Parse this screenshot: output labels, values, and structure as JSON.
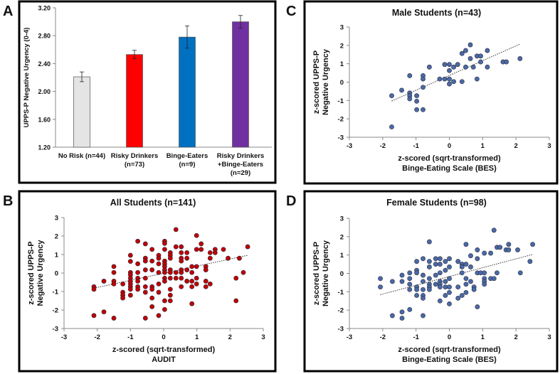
{
  "colors": {
    "risk_none": "#e4e4e4",
    "risk_drink": "#ff0000",
    "risk_binge": "#0070c0",
    "risk_both": "#7030a0",
    "dot_red": "#c00000",
    "dot_blue": "#4a6aa5"
  },
  "chart_data": [
    {
      "panel": "A",
      "type": "bar",
      "title": "",
      "ylabel": "UPPS-P Negative Urgency (0-4)",
      "xlabel": "",
      "ylim": [
        1.2,
        3.2
      ],
      "yticks": [
        "1.20",
        "1.60",
        "2.00",
        "2.40",
        "2.80",
        "3.20"
      ],
      "categories": [
        [
          "No Risk (n=44)"
        ],
        [
          "Risky Drinkers",
          "(n=73)"
        ],
        [
          "Binge-Eaters",
          "(n=9)"
        ],
        [
          "Risky Drinkers",
          "+Binge-Eaters",
          "(n=29)"
        ]
      ],
      "values": [
        2.21,
        2.53,
        2.78,
        3.0
      ],
      "errors": [
        0.07,
        0.06,
        0.16,
        0.09
      ],
      "bar_colors": [
        "#e4e4e4",
        "#ff0000",
        "#0070c0",
        "#7030a0"
      ]
    },
    {
      "panel": "B",
      "type": "scatter",
      "title": "All Students (n=141)",
      "ylabel": [
        "z-scored UPPS-P",
        "Negative Urgency"
      ],
      "xlabel": [
        "z-scored (sqrt-transformed)",
        "AUDIT"
      ],
      "xlim": [
        -3,
        3
      ],
      "ylim": [
        -3,
        3
      ],
      "ticks": [
        "-3",
        "-2",
        "-1",
        "0",
        "1",
        "2",
        "3"
      ],
      "color": "#c00000",
      "trend": [
        [
          -2.1,
          -0.82
        ],
        [
          2.53,
          0.96
        ]
      ],
      "points": [
        [
          -2.1,
          -0.74
        ],
        [
          -2.1,
          -0.88
        ],
        [
          -2.1,
          -2.3
        ],
        [
          -1.8,
          -0.44
        ],
        [
          -1.8,
          -2.1
        ],
        [
          -1.5,
          0.35
        ],
        [
          -1.5,
          0.03
        ],
        [
          -1.5,
          -0.44
        ],
        [
          -1.5,
          -0.59
        ],
        [
          -1.5,
          -2.44
        ],
        [
          -1.23,
          -0.59
        ],
        [
          -1.23,
          -1.04
        ],
        [
          -1.23,
          -1.2
        ],
        [
          -1.23,
          -1.35
        ],
        [
          -1,
          0.96
        ],
        [
          -1,
          0.63
        ],
        [
          -1,
          0.03
        ],
        [
          -1,
          -0.1
        ],
        [
          -1,
          -0.28
        ],
        [
          -1,
          -0.44
        ],
        [
          -1,
          -0.59
        ],
        [
          -1,
          -0.74
        ],
        [
          -1,
          -0.88
        ],
        [
          -1,
          -1.2
        ],
        [
          -0.78,
          1.72
        ],
        [
          -0.78,
          0.5
        ],
        [
          -0.78,
          0.03
        ],
        [
          -0.78,
          -0.28
        ],
        [
          -0.78,
          -0.44
        ],
        [
          -0.78,
          -0.74
        ],
        [
          -0.78,
          -0.88
        ],
        [
          -0.55,
          1.58
        ],
        [
          -0.55,
          0.8
        ],
        [
          -0.55,
          0.65
        ],
        [
          -0.55,
          0.17
        ],
        [
          -0.55,
          -0.28
        ],
        [
          -0.55,
          -0.74
        ],
        [
          -0.55,
          -1.04
        ],
        [
          -0.55,
          -2.44
        ],
        [
          -0.35,
          1.28
        ],
        [
          -0.35,
          0.65
        ],
        [
          -0.35,
          0.17
        ],
        [
          -0.35,
          -0.74
        ],
        [
          -0.35,
          -0.88
        ],
        [
          -0.35,
          -1.35
        ],
        [
          -0.35,
          -1.82
        ],
        [
          -0.15,
          0.96
        ],
        [
          -0.15,
          0.8
        ],
        [
          -0.15,
          0.5
        ],
        [
          -0.15,
          0.03
        ],
        [
          -0.15,
          -0.59
        ],
        [
          -0.15,
          -1.04
        ],
        [
          -0.15,
          -2.3
        ],
        [
          0.03,
          1.72
        ],
        [
          0.03,
          1.6
        ],
        [
          0.03,
          1.28
        ],
        [
          0.03,
          0.65
        ],
        [
          0.03,
          0.5
        ],
        [
          0.03,
          0.35
        ],
        [
          0.03,
          0.17
        ],
        [
          0.03,
          0.03
        ],
        [
          0.03,
          -0.28
        ],
        [
          0.03,
          -0.44
        ],
        [
          0.03,
          -1.5
        ],
        [
          0.03,
          -1.97
        ],
        [
          0.2,
          1.1
        ],
        [
          0.2,
          0.96
        ],
        [
          0.2,
          0.8
        ],
        [
          0.2,
          0.17
        ],
        [
          0.2,
          0.03
        ],
        [
          0.2,
          -0.28
        ],
        [
          0.2,
          -0.88
        ],
        [
          0.2,
          -1.2
        ],
        [
          0.2,
          -1.5
        ],
        [
          0.37,
          2.35
        ],
        [
          0.37,
          1.42
        ],
        [
          0.37,
          0.03
        ],
        [
          0.37,
          -0.28
        ],
        [
          0.53,
          1.42
        ],
        [
          0.53,
          1.1
        ],
        [
          0.53,
          0.8
        ],
        [
          0.53,
          0.65
        ],
        [
          0.53,
          0.17
        ],
        [
          0.53,
          0.03
        ],
        [
          0.53,
          -0.28
        ],
        [
          0.53,
          -0.74
        ],
        [
          0.7,
          1.1
        ],
        [
          0.7,
          0.8
        ],
        [
          0.7,
          0.17
        ],
        [
          0.7,
          -0.44
        ],
        [
          0.85,
          0.35
        ],
        [
          0.85,
          0.03
        ],
        [
          0.85,
          -0.44
        ],
        [
          0.85,
          -0.74
        ],
        [
          0.85,
          -1.66
        ],
        [
          0.99,
          2.03
        ],
        [
          0.99,
          1.28
        ],
        [
          0.99,
          0.35
        ],
        [
          0.99,
          -0.28
        ],
        [
          0.99,
          -0.59
        ],
        [
          1.13,
          1.58
        ],
        [
          1.13,
          1.28
        ],
        [
          1.27,
          0.35
        ],
        [
          1.27,
          0.17
        ],
        [
          1.27,
          -0.44
        ],
        [
          1.27,
          -0.74
        ],
        [
          1.4,
          1.1
        ],
        [
          1.4,
          0.8
        ],
        [
          1.4,
          -0.59
        ],
        [
          1.55,
          1.28
        ],
        [
          1.55,
          1.1
        ],
        [
          1.8,
          1.28
        ],
        [
          1.94,
          0.8
        ],
        [
          2.18,
          -0.28
        ],
        [
          2.18,
          -1.5
        ],
        [
          2.28,
          0.8
        ],
        [
          2.4,
          0.03
        ],
        [
          2.53,
          1.42
        ]
      ]
    },
    {
      "panel": "C",
      "type": "scatter",
      "title": "Male Students (n=43)",
      "ylabel": [
        "z-scored UPPS-P",
        "Negative Urgency"
      ],
      "xlabel": [
        "z-scored (sqrt-transformed)",
        "Binge-Eating Scale (BES)"
      ],
      "xlim": [
        -3,
        3
      ],
      "ylim": [
        -3,
        3
      ],
      "ticks": [
        "-3",
        "-2",
        "-1",
        "0",
        "1",
        "2",
        "3"
      ],
      "color": "#4a6aa5",
      "trend": [
        [
          -1.73,
          -1.03
        ],
        [
          2.12,
          2.07
        ]
      ],
      "points": [
        [
          -1.73,
          -0.74
        ],
        [
          -1.73,
          -2.44
        ],
        [
          -1.43,
          -0.44
        ],
        [
          -1.19,
          0.35
        ],
        [
          -1.19,
          -0.59
        ],
        [
          -1.19,
          -0.74
        ],
        [
          -1.19,
          -0.91
        ],
        [
          -0.98,
          -0.74
        ],
        [
          -0.98,
          -1.04
        ],
        [
          -0.98,
          -1.5
        ],
        [
          -0.79,
          0.35
        ],
        [
          -0.79,
          0.17
        ],
        [
          -0.79,
          -0.28
        ],
        [
          -0.79,
          -1.5
        ],
        [
          -0.6,
          0.82
        ],
        [
          -0.29,
          0.17
        ],
        [
          -0.14,
          0.96
        ],
        [
          -0.14,
          0.17
        ],
        [
          0,
          0.96
        ],
        [
          0,
          0.63
        ],
        [
          0,
          0.17
        ],
        [
          0,
          -0.1
        ],
        [
          0.13,
          0.82
        ],
        [
          0.13,
          0.03
        ],
        [
          0.25,
          0.96
        ],
        [
          0.38,
          1.56
        ],
        [
          0.38,
          0.03
        ],
        [
          0.49,
          1.72
        ],
        [
          0.49,
          0.82
        ],
        [
          0.63,
          2.03
        ],
        [
          0.63,
          1.28
        ],
        [
          0.72,
          0.82
        ],
        [
          0.83,
          1.42
        ],
        [
          0.83,
          0.17
        ],
        [
          0.94,
          1.42
        ],
        [
          0.94,
          1.1
        ],
        [
          1.14,
          1.72
        ],
        [
          1.14,
          0.82
        ],
        [
          1.61,
          1.1
        ],
        [
          1.71,
          1.1
        ],
        [
          2.12,
          1.28
        ]
      ]
    },
    {
      "panel": "D",
      "type": "scatter",
      "title": "Female Students (n=98)",
      "ylabel": [
        "z-scored UPPS-P",
        "Negative Urgency"
      ],
      "xlabel": [
        "z-scored (sqrt-transformed)",
        "Binge-Eating Scale (BES)"
      ],
      "xlim": [
        -3,
        3
      ],
      "ylim": [
        -3,
        3
      ],
      "ticks": [
        "-3",
        "-2",
        "-1",
        "0",
        "1",
        "2",
        "3"
      ],
      "color": "#4a6aa5",
      "trend": [
        [
          -2.07,
          -1.16
        ],
        [
          2.5,
          1.03
        ]
      ],
      "points": [
        [
          -2.07,
          -0.28
        ],
        [
          -2.07,
          -0.74
        ],
        [
          -1.71,
          -0.44
        ],
        [
          -1.71,
          -2.3
        ],
        [
          -1.42,
          -0.1
        ],
        [
          -1.42,
          -0.44
        ],
        [
          -1.42,
          -2.1
        ],
        [
          -1.42,
          -2.44
        ],
        [
          -1.19,
          0.03
        ],
        [
          -1.19,
          -0.28
        ],
        [
          -1.19,
          -0.59
        ],
        [
          -1.19,
          -0.88
        ],
        [
          -1.19,
          -1.97
        ],
        [
          -0.98,
          0.65
        ],
        [
          -0.98,
          0.17
        ],
        [
          -0.98,
          0.03
        ],
        [
          -0.98,
          -0.74
        ],
        [
          -0.98,
          -0.88
        ],
        [
          -0.98,
          -1.2
        ],
        [
          -0.79,
          0.8
        ],
        [
          -0.79,
          -0.1
        ],
        [
          -0.79,
          -0.44
        ],
        [
          -0.79,
          -0.88
        ],
        [
          -0.79,
          -1.2
        ],
        [
          -0.79,
          -1.35
        ],
        [
          -0.79,
          -2.3
        ],
        [
          -0.6,
          1.72
        ],
        [
          -0.6,
          0.65
        ],
        [
          -0.6,
          0.35
        ],
        [
          -0.6,
          -0.28
        ],
        [
          -0.6,
          -0.59
        ],
        [
          -0.6,
          -0.74
        ],
        [
          -0.6,
          -0.88
        ],
        [
          -0.41,
          0.8
        ],
        [
          -0.41,
          0.5
        ],
        [
          -0.41,
          -0.1
        ],
        [
          -0.41,
          -0.59
        ],
        [
          -0.28,
          0.8
        ],
        [
          -0.28,
          0.5
        ],
        [
          -0.28,
          0.03
        ],
        [
          -0.28,
          -0.44
        ],
        [
          -0.28,
          -0.59
        ],
        [
          -0.28,
          -0.74
        ],
        [
          -0.28,
          -1.5
        ],
        [
          -0.12,
          0.65
        ],
        [
          -0.12,
          0.17
        ],
        [
          -0.12,
          -0.44
        ],
        [
          -0.12,
          -0.74
        ],
        [
          -0.12,
          -1.2
        ],
        [
          0,
          0.8
        ],
        [
          0,
          0.35
        ],
        [
          0,
          -0.28
        ],
        [
          0,
          -0.74
        ],
        [
          0,
          -1.04
        ],
        [
          0,
          -1.66
        ],
        [
          0.26,
          0.65
        ],
        [
          0.26,
          -0.74
        ],
        [
          0.26,
          -1.35
        ],
        [
          0.38,
          0.5
        ],
        [
          0.38,
          0.35
        ],
        [
          0.38,
          0.03
        ],
        [
          0.38,
          -1.2
        ],
        [
          0.5,
          1.58
        ],
        [
          0.5,
          0.5
        ],
        [
          0.5,
          -0.28
        ],
        [
          0.5,
          -0.59
        ],
        [
          0.5,
          -1.04
        ],
        [
          0.64,
          0.96
        ],
        [
          0.64,
          0.35
        ],
        [
          0.64,
          -0.44
        ],
        [
          0.74,
          -0.74
        ],
        [
          0.74,
          -0.88
        ],
        [
          0.84,
          1.28
        ],
        [
          0.84,
          0.8
        ],
        [
          0.84,
          0.03
        ],
        [
          0.84,
          -1.82
        ],
        [
          0.94,
          0.03
        ],
        [
          1.05,
          1.1
        ],
        [
          1.05,
          0.03
        ],
        [
          1.05,
          -0.28
        ],
        [
          1.05,
          -0.44
        ],
        [
          1.05,
          -0.59
        ],
        [
          1.24,
          1.1
        ],
        [
          1.24,
          -0.28
        ],
        [
          1.34,
          2.35
        ],
        [
          1.34,
          -0.28
        ],
        [
          1.43,
          1.42
        ],
        [
          1.43,
          0.03
        ],
        [
          1.52,
          1.42
        ],
        [
          1.7,
          1.28
        ],
        [
          1.78,
          1.58
        ],
        [
          1.78,
          1.28
        ],
        [
          2.05,
          1.28
        ],
        [
          2.13,
          0.03
        ],
        [
          2.42,
          0.65
        ],
        [
          2.5,
          1.58
        ]
      ]
    }
  ]
}
